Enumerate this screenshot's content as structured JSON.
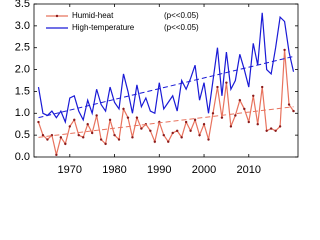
{
  "chart_data": {
    "type": "line",
    "x": [
      1963,
      1964,
      1965,
      1966,
      1967,
      1968,
      1969,
      1970,
      1971,
      1972,
      1973,
      1974,
      1975,
      1976,
      1977,
      1978,
      1979,
      1980,
      1981,
      1982,
      1983,
      1984,
      1985,
      1986,
      1987,
      1988,
      1989,
      1990,
      1991,
      1992,
      1993,
      1994,
      1995,
      1996,
      1997,
      1998,
      1999,
      2000,
      2001,
      2002,
      2003,
      2004,
      2005,
      2006,
      2007,
      2008,
      2009,
      2010,
      2011,
      2012,
      2013,
      2014,
      2015,
      2016,
      2017,
      2018,
      2019,
      2020
    ],
    "series": [
      {
        "name": "Humid-heat",
        "annotation": "(p<<0.05)",
        "color": "#e8735e",
        "markers": true,
        "trend": [
          0.45,
          1.15
        ],
        "values": [
          0.8,
          0.5,
          0.4,
          0.5,
          0.05,
          0.45,
          0.3,
          0.7,
          0.85,
          0.5,
          0.45,
          0.75,
          0.55,
          0.95,
          0.4,
          0.3,
          0.85,
          0.5,
          0.4,
          1.1,
          0.9,
          0.45,
          0.9,
          0.65,
          0.75,
          0.6,
          0.35,
          0.8,
          0.5,
          0.35,
          0.55,
          0.6,
          0.45,
          0.8,
          0.6,
          0.85,
          0.5,
          0.75,
          0.4,
          1.0,
          1.6,
          0.9,
          1.7,
          0.7,
          0.95,
          1.3,
          1.1,
          0.8,
          1.4,
          0.75,
          1.6,
          0.6,
          0.65,
          0.6,
          0.7,
          2.45,
          1.2,
          1.05
        ]
      },
      {
        "name": "High-temperature",
        "annotation": "(p<<0.05)",
        "color": "#1a1ad6",
        "markers": false,
        "trend": [
          0.9,
          2.3
        ],
        "values": [
          1.6,
          1.0,
          0.95,
          1.05,
          0.9,
          1.05,
          0.8,
          1.35,
          1.4,
          1.05,
          0.85,
          1.3,
          1.0,
          1.55,
          1.2,
          1.05,
          1.6,
          1.25,
          1.1,
          1.9,
          1.5,
          1.0,
          1.65,
          1.15,
          1.35,
          1.05,
          1.0,
          1.7,
          1.1,
          1.25,
          1.4,
          1.05,
          1.75,
          1.55,
          1.8,
          2.1,
          1.3,
          1.7,
          1.0,
          1.75,
          2.5,
          1.4,
          2.4,
          1.55,
          1.75,
          2.35,
          2.0,
          1.6,
          2.6,
          2.1,
          3.3,
          2.0,
          1.9,
          2.5,
          3.2,
          3.1,
          2.4,
          1.95
        ]
      }
    ],
    "xlim": [
      1962,
      2021
    ],
    "xticks": [
      1970,
      1980,
      1990,
      2000,
      2010
    ],
    "ylim": [
      0,
      3.5
    ],
    "yticks": [
      {
        "value": 0,
        "label": "0.0"
      },
      0.5,
      {
        "value": 1,
        "label": "1.0"
      },
      1.5,
      {
        "value": 2,
        "label": "2.0"
      },
      2.5,
      {
        "value": 3,
        "label": "3.0"
      },
      3.5
    ],
    "legend": "upper left"
  }
}
